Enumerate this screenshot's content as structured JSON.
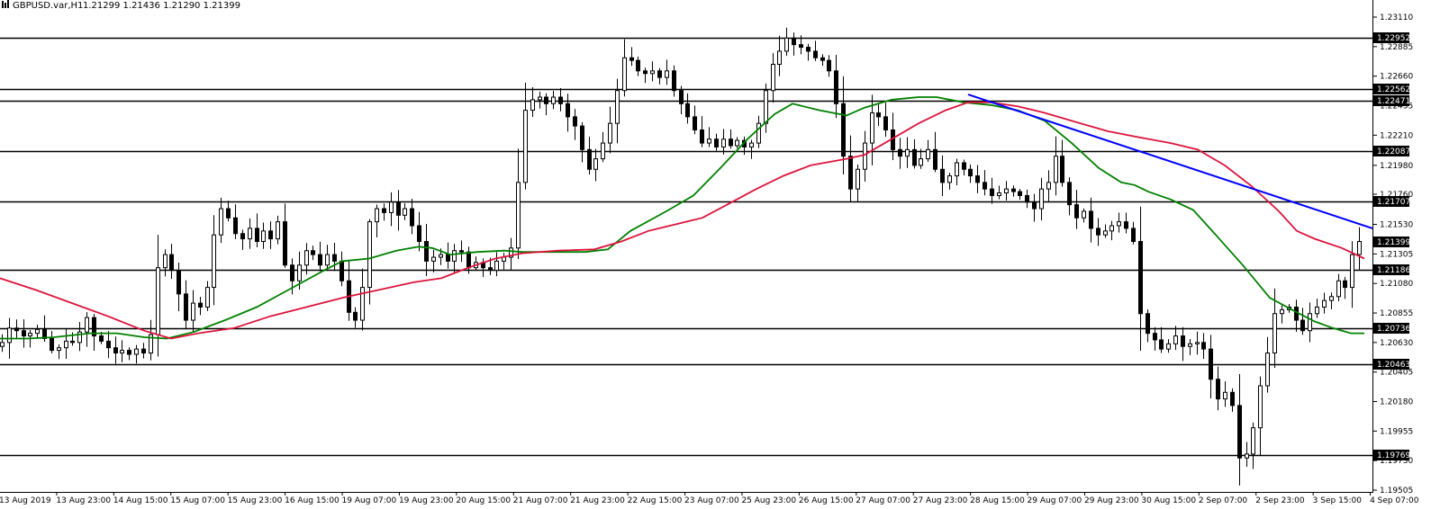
{
  "header": {
    "symbol": "GBPUSD.var,H1",
    "ohlc": "1.21299 1.21436 1.21290 1.21399",
    "icon": "chart-bars-icon"
  },
  "chart_data": {
    "type": "candlestick",
    "title": "GBPUSD.var,H1 1.21299 1.21436 1.21290 1.21399",
    "symbol": "GBPUSD.var",
    "timeframe": "H1",
    "ylim": [
      1.1948,
      1.2324
    ],
    "y_ticks": [
      1.2311,
      1.22885,
      1.2266,
      1.22435,
      1.2221,
      1.2198,
      1.2176,
      1.2153,
      1.21305,
      1.2108,
      1.20855,
      1.2063,
      1.20405,
      1.2018,
      1.19955,
      1.1973,
      1.19505
    ],
    "x_labels": [
      "13 Aug 2019",
      "13 Aug 23:00",
      "14 Aug 15:00",
      "15 Aug 07:00",
      "15 Aug 23:00",
      "16 Aug 15:00",
      "19 Aug 07:00",
      "19 Aug 23:00",
      "20 Aug 15:00",
      "21 Aug 07:00",
      "21 Aug 23:00",
      "22 Aug 15:00",
      "23 Aug 07:00",
      "25 Aug 23:00",
      "26 Aug 15:00",
      "27 Aug 07:00",
      "27 Aug 23:00",
      "28 Aug 15:00",
      "29 Aug 07:00",
      "29 Aug 23:00",
      "30 Aug 15:00",
      "2 Sep 07:00",
      "2 Sep 23:00",
      "3 Sep 15:00",
      "4 Sep 07:00"
    ],
    "price_levels": [
      1.22952,
      1.22562,
      1.22471,
      1.22087,
      1.21707,
      1.21186,
      1.20736,
      1.20463,
      1.19769
    ],
    "current_price": 1.21399,
    "close_path": [
      1.2063,
      1.2074,
      1.2072,
      1.2068,
      1.207,
      1.2073,
      1.2066,
      1.2057,
      1.2059,
      1.2064,
      1.2063,
      1.2071,
      1.2082,
      1.2068,
      1.2064,
      1.2059,
      1.2055,
      1.2057,
      1.2054,
      1.2058,
      1.2055,
      1.2069,
      1.212,
      1.213,
      1.2118,
      1.21,
      1.208,
      1.2093,
      1.209,
      1.2105,
      1.2145,
      1.2165,
      1.2158,
      1.2146,
      1.2142,
      1.215,
      1.214,
      1.2148,
      1.2142,
      1.2155,
      1.2122,
      1.211,
      1.2122,
      1.2133,
      1.213,
      1.2122,
      1.213,
      1.2125,
      1.211,
      1.2086,
      1.208,
      1.2105,
      1.2155,
      1.2165,
      1.2162,
      1.217,
      1.216,
      1.2165,
      1.2152,
      1.214,
      1.2125,
      1.2128,
      1.213,
      1.2125,
      1.2133,
      1.2132,
      1.212,
      1.2124,
      1.212,
      1.2118,
      1.2125,
      1.2128,
      1.2135,
      1.2185,
      1.224,
      1.2248,
      1.225,
      1.2245,
      1.225,
      1.2245,
      1.2235,
      1.2228,
      1.221,
      1.2195,
      1.2203,
      1.2215,
      1.223,
      1.2255,
      1.228,
      1.2278,
      1.227,
      1.2268,
      1.227,
      1.2265,
      1.227,
      1.2255,
      1.2245,
      1.2235,
      1.2225,
      1.2215,
      1.2218,
      1.2212,
      1.2218,
      1.2213,
      1.2217,
      1.2212,
      1.2215,
      1.223,
      1.2255,
      1.2275,
      1.2285,
      1.2295,
      1.229,
      1.2288,
      1.2285,
      1.228,
      1.2278,
      1.227,
      1.2245,
      1.2205,
      1.218,
      1.2195,
      1.2215,
      1.2238,
      1.2235,
      1.2225,
      1.221,
      1.2205,
      1.221,
      1.2198,
      1.2203,
      1.221,
      1.2195,
      1.2185,
      1.219,
      1.22,
      1.2195,
      1.219,
      1.2185,
      1.218,
      1.2175,
      1.2177,
      1.218,
      1.2178,
      1.2175,
      1.217,
      1.2165,
      1.218,
      1.2185,
      1.2205,
      1.2185,
      1.2168,
      1.2158,
      1.2163,
      1.215,
      1.2145,
      1.2148,
      1.2152,
      1.2155,
      1.215,
      1.214,
      1.2085,
      1.207,
      1.2065,
      1.2058,
      1.2062,
      1.2068,
      1.206,
      1.2062,
      1.2063,
      1.2058,
      1.2035,
      1.202,
      1.2025,
      1.2015,
      1.1975,
      1.1978,
      1.1998,
      1.203,
      1.2055,
      1.2085,
      1.2088,
      1.209,
      1.208,
      1.2072,
      1.2085,
      1.209,
      1.2095,
      1.2098,
      1.211,
      1.2105,
      1.213,
      1.214
    ],
    "series": [
      {
        "name": "",
        "color": "#008000",
        "kind": "line",
        "points": [
          [
            0,
            1.2066
          ],
          [
            30,
            1.2066
          ],
          [
            60,
            1.2067
          ],
          [
            100,
            1.207
          ],
          [
            130,
            1.207
          ],
          [
            160,
            1.2067
          ],
          [
            185,
            1.2066
          ],
          [
            215,
            1.2071
          ],
          [
            250,
            1.208
          ],
          [
            285,
            1.209
          ],
          [
            320,
            1.2103
          ],
          [
            360,
            1.2118
          ],
          [
            380,
            1.2125
          ],
          [
            410,
            1.2127
          ],
          [
            440,
            1.2133
          ],
          [
            465,
            1.2136
          ],
          [
            480,
            1.2135
          ],
          [
            500,
            1.213
          ],
          [
            530,
            1.2132
          ],
          [
            560,
            1.2133
          ],
          [
            580,
            1.2132
          ],
          [
            620,
            1.2132
          ],
          [
            650,
            1.2132
          ],
          [
            675,
            1.2134
          ],
          [
            700,
            1.2148
          ],
          [
            740,
            1.2163
          ],
          [
            770,
            1.2175
          ],
          [
            800,
            1.2196
          ],
          [
            830,
            1.2218
          ],
          [
            860,
            1.2237
          ],
          [
            880,
            1.2245
          ],
          [
            910,
            1.224
          ],
          [
            940,
            1.2236
          ],
          [
            960,
            1.2242
          ],
          [
            990,
            1.2248
          ],
          [
            1020,
            1.225
          ],
          [
            1040,
            1.225
          ],
          [
            1070,
            1.2246
          ],
          [
            1100,
            1.2244
          ],
          [
            1130,
            1.224
          ],
          [
            1160,
            1.2232
          ],
          [
            1190,
            1.2215
          ],
          [
            1220,
            1.2196
          ],
          [
            1245,
            1.2185
          ],
          [
            1260,
            1.2183
          ],
          [
            1275,
            1.2178
          ],
          [
            1300,
            1.2172
          ],
          [
            1325,
            1.2164
          ],
          [
            1350,
            1.2145
          ],
          [
            1380,
            1.2122
          ],
          [
            1410,
            1.2097
          ],
          [
            1440,
            1.2086
          ],
          [
            1460,
            1.2079
          ],
          [
            1480,
            1.2074
          ],
          [
            1500,
            1.207
          ],
          [
            1515,
            1.207
          ]
        ]
      },
      {
        "name": "",
        "color": "#dc143c",
        "kind": "line",
        "points": [
          [
            0,
            1.2112
          ],
          [
            40,
            1.2103
          ],
          [
            80,
            1.2093
          ],
          [
            120,
            1.2083
          ],
          [
            160,
            1.2072
          ],
          [
            190,
            1.2066
          ],
          [
            220,
            1.207
          ],
          [
            260,
            1.2074
          ],
          [
            300,
            1.2083
          ],
          [
            340,
            1.209
          ],
          [
            380,
            1.2097
          ],
          [
            420,
            1.2103
          ],
          [
            460,
            1.2109
          ],
          [
            490,
            1.2112
          ],
          [
            520,
            1.212
          ],
          [
            550,
            1.2127
          ],
          [
            580,
            1.2131
          ],
          [
            620,
            1.2133
          ],
          [
            660,
            1.2134
          ],
          [
            690,
            1.214
          ],
          [
            720,
            1.2148
          ],
          [
            750,
            1.2153
          ],
          [
            780,
            1.2158
          ],
          [
            810,
            1.2169
          ],
          [
            840,
            1.218
          ],
          [
            870,
            1.219
          ],
          [
            900,
            1.2198
          ],
          [
            940,
            1.2203
          ],
          [
            960,
            1.2206
          ],
          [
            990,
            1.2218
          ],
          [
            1020,
            1.223
          ],
          [
            1050,
            1.224
          ],
          [
            1075,
            1.2246
          ],
          [
            1100,
            1.2246
          ],
          [
            1130,
            1.2243
          ],
          [
            1160,
            1.2238
          ],
          [
            1200,
            1.223
          ],
          [
            1230,
            1.2224
          ],
          [
            1260,
            1.222
          ],
          [
            1300,
            1.2215
          ],
          [
            1330,
            1.221
          ],
          [
            1360,
            1.2198
          ],
          [
            1390,
            1.2182
          ],
          [
            1420,
            1.2163
          ],
          [
            1440,
            1.2148
          ],
          [
            1460,
            1.2142
          ],
          [
            1490,
            1.2135
          ],
          [
            1515,
            1.2127
          ]
        ]
      },
      {
        "name": "",
        "color": "#0000ff",
        "kind": "trendline",
        "points": [
          [
            1075,
            1.2252
          ],
          [
            1524,
            1.215
          ]
        ]
      }
    ]
  }
}
